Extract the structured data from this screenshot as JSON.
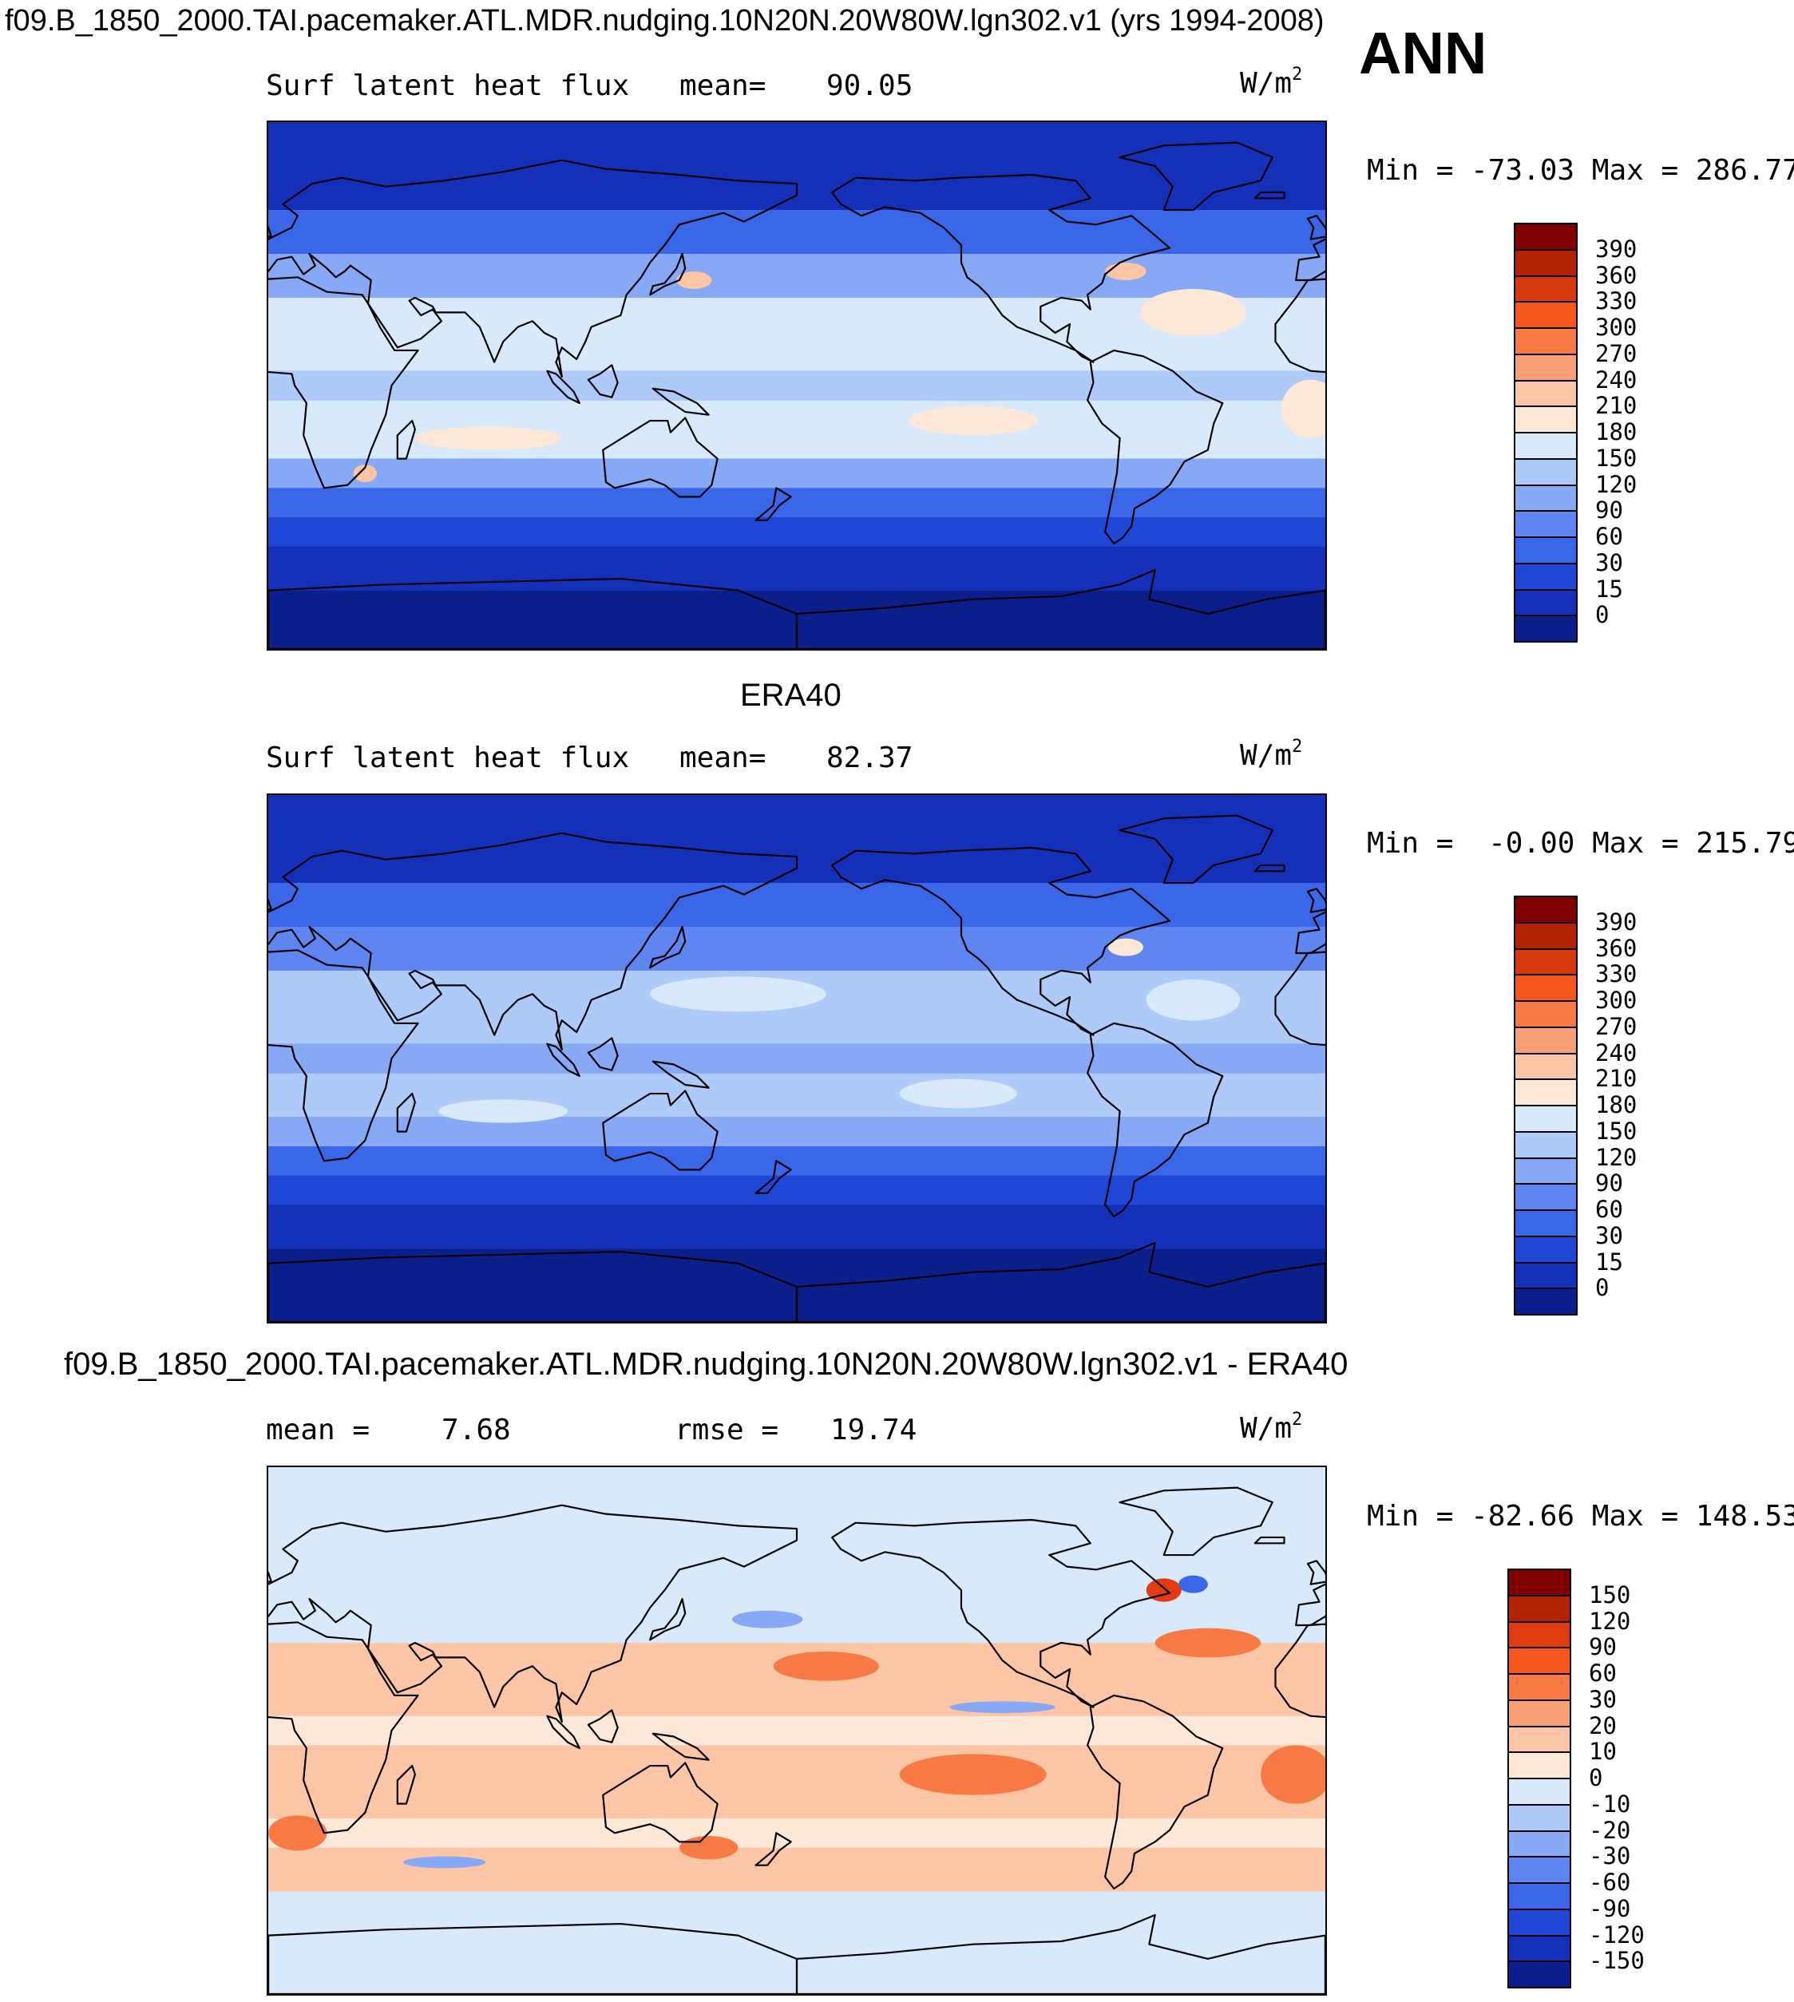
{
  "header": {
    "title": "f09.B_1850_2000.TAI.pacemaker.ATL.MDR.nudging.10N20N.20W80W.lgn302.v1 (yrs 1994-2008)",
    "season": "ANN"
  },
  "panels": [
    {
      "id": "model",
      "heading": "",
      "left_label": "Surf latent heat flux",
      "mean_label": "mean=",
      "mean_value": "90.05",
      "stat2_label": "",
      "stat2_value": "",
      "units": "W/m",
      "units_sup": "2",
      "min_label": "Min =",
      "min_value": "-73.03",
      "max_label": "Max =",
      "max_value": "286.77",
      "colorbar": {
        "levels": [
          "390",
          "360",
          "330",
          "300",
          "270",
          "240",
          "210",
          "180",
          "150",
          "120",
          "90",
          "60",
          "30",
          "15",
          "0"
        ],
        "colors": [
          "#7f0000",
          "#b22200",
          "#d83a10",
          "#f5561c",
          "#f77a45",
          "#f99f75",
          "#fcc5a6",
          "#fde8d8",
          "#d7e9fb",
          "#aecaf8",
          "#87a8f5",
          "#5f86f0",
          "#3a66e8",
          "#1f47d6",
          "#1430b8",
          "#0b1f8c"
        ]
      },
      "map": {
        "background": "#1f47d6",
        "zones": [
          {
            "color": "#0b1f8c",
            "lat_min": -90,
            "lat_max": -70
          },
          {
            "color": "#1430b8",
            "lat_min": -70,
            "lat_max": -55
          },
          {
            "color": "#1f47d6",
            "lat_min": -55,
            "lat_max": -45
          },
          {
            "color": "#3a66e8",
            "lat_min": -45,
            "lat_max": -35
          },
          {
            "color": "#87a8f5",
            "lat_min": -35,
            "lat_max": -25
          },
          {
            "color": "#d7e9fb",
            "lat_min": -25,
            "lat_max": -5
          },
          {
            "color": "#aecaf8",
            "lat_min": -5,
            "lat_max": 5
          },
          {
            "color": "#d7e9fb",
            "lat_min": 5,
            "lat_max": 30
          },
          {
            "color": "#87a8f5",
            "lat_min": 30,
            "lat_max": 45
          },
          {
            "color": "#3a66e8",
            "lat_min": 45,
            "lat_max": 60
          },
          {
            "color": "#1430b8",
            "lat_min": 60,
            "lat_max": 90
          }
        ],
        "blobs": [
          {
            "color": "#fde8d8",
            "lon": -120,
            "lat": -12,
            "rx": 22,
            "ry": 5
          },
          {
            "color": "#fde8d8",
            "lon": 75,
            "lat": -18,
            "rx": 25,
            "ry": 4
          },
          {
            "color": "#fde8d8",
            "lon": -45,
            "lat": 25,
            "rx": 18,
            "ry": 8
          },
          {
            "color": "#fcc5a6",
            "lon": 145,
            "lat": 36,
            "rx": 6,
            "ry": 3
          },
          {
            "color": "#fcc5a6",
            "lon": -68,
            "lat": 39,
            "rx": 7,
            "ry": 3
          },
          {
            "color": "#fde8d8",
            "lon": -5,
            "lat": -8,
            "rx": 10,
            "ry": 10
          },
          {
            "color": "#fcc5a6",
            "lon": 33,
            "lat": -30,
            "rx": 4,
            "ry": 3
          }
        ]
      }
    },
    {
      "id": "obs",
      "heading": "ERA40",
      "left_label": "Surf latent heat flux",
      "mean_label": "mean=",
      "mean_value": "82.37",
      "stat2_label": "",
      "stat2_value": "",
      "units": "W/m",
      "units_sup": "2",
      "min_label": "Min =",
      "min_value": "-0.00",
      "max_label": "Max =",
      "max_value": "215.79",
      "colorbar": {
        "levels": [
          "390",
          "360",
          "330",
          "300",
          "270",
          "240",
          "210",
          "180",
          "150",
          "120",
          "90",
          "60",
          "30",
          "15",
          "0"
        ],
        "colors": [
          "#7f0000",
          "#b22200",
          "#d83a10",
          "#f5561c",
          "#f77a45",
          "#f99f75",
          "#fcc5a6",
          "#fde8d8",
          "#d7e9fb",
          "#aecaf8",
          "#87a8f5",
          "#5f86f0",
          "#3a66e8",
          "#1f47d6",
          "#1430b8",
          "#0b1f8c"
        ]
      },
      "map": {
        "background": "#1f47d6",
        "zones": [
          {
            "color": "#0b1f8c",
            "lat_min": -90,
            "lat_max": -65
          },
          {
            "color": "#1430b8",
            "lat_min": -65,
            "lat_max": -50
          },
          {
            "color": "#1f47d6",
            "lat_min": -50,
            "lat_max": -40
          },
          {
            "color": "#3a66e8",
            "lat_min": -40,
            "lat_max": -30
          },
          {
            "color": "#87a8f5",
            "lat_min": -30,
            "lat_max": -20
          },
          {
            "color": "#aecaf8",
            "lat_min": -20,
            "lat_max": -5
          },
          {
            "color": "#87a8f5",
            "lat_min": -5,
            "lat_max": 5
          },
          {
            "color": "#aecaf8",
            "lat_min": 5,
            "lat_max": 30
          },
          {
            "color": "#5f86f0",
            "lat_min": 30,
            "lat_max": 45
          },
          {
            "color": "#3a66e8",
            "lat_min": 45,
            "lat_max": 60
          },
          {
            "color": "#1430b8",
            "lat_min": 60,
            "lat_max": 90
          }
        ],
        "blobs": [
          {
            "color": "#d7e9fb",
            "lon": -125,
            "lat": -12,
            "rx": 20,
            "ry": 5
          },
          {
            "color": "#d7e9fb",
            "lon": 80,
            "lat": -18,
            "rx": 22,
            "ry": 4
          },
          {
            "color": "#d7e9fb",
            "lon": 160,
            "lat": 22,
            "rx": 30,
            "ry": 6
          },
          {
            "color": "#fde8d8",
            "lon": -68,
            "lat": 38,
            "rx": 6,
            "ry": 3
          },
          {
            "color": "#d7e9fb",
            "lon": -45,
            "lat": 20,
            "rx": 16,
            "ry": 7
          }
        ]
      }
    },
    {
      "id": "diff",
      "heading": "f09.B_1850_2000.TAI.pacemaker.ATL.MDR.nudging.10N20N.20W80W.lgn302.v1 - ERA40",
      "left_label": "mean =",
      "mean_label": "",
      "mean_value": "7.68",
      "stat2_label": "rmse =",
      "stat2_value": "19.74",
      "units": "W/m",
      "units_sup": "2",
      "min_label": "Min =",
      "min_value": "-82.66",
      "max_label": "Max =",
      "max_value": "148.53",
      "colorbar": {
        "levels": [
          "150",
          "120",
          "90",
          "60",
          "30",
          "20",
          "10",
          "0",
          "-10",
          "-20",
          "-30",
          "-60",
          "-90",
          "-120",
          "-150"
        ],
        "colors": [
          "#7f0000",
          "#b22200",
          "#e03c10",
          "#f5561c",
          "#f77a45",
          "#f99f75",
          "#fcc5a6",
          "#fde8d8",
          "#d7e9fb",
          "#aecaf8",
          "#87a8f5",
          "#5f86f0",
          "#3a66e8",
          "#1f47d6",
          "#1430b8",
          "#0b1f8c"
        ]
      },
      "map": {
        "background": "#d7e9fb",
        "zones": [
          {
            "color": "#d7e9fb",
            "lat_min": -90,
            "lat_max": -55
          },
          {
            "color": "#fcc5a6",
            "lat_min": -55,
            "lat_max": -40
          },
          {
            "color": "#fde8d8",
            "lat_min": -40,
            "lat_max": -30
          },
          {
            "color": "#fcc5a6",
            "lat_min": -30,
            "lat_max": -5
          },
          {
            "color": "#fde8d8",
            "lat_min": -5,
            "lat_max": 5
          },
          {
            "color": "#fcc5a6",
            "lat_min": 5,
            "lat_max": 30
          },
          {
            "color": "#d7e9fb",
            "lat_min": 30,
            "lat_max": 90
          }
        ],
        "blobs": [
          {
            "color": "#f77a45",
            "lon": -120,
            "lat": -15,
            "rx": 25,
            "ry": 7
          },
          {
            "color": "#f77a45",
            "lon": -10,
            "lat": -15,
            "rx": 12,
            "ry": 10
          },
          {
            "color": "#f77a45",
            "lon": -170,
            "lat": 22,
            "rx": 18,
            "ry": 5
          },
          {
            "color": "#f77a45",
            "lon": -40,
            "lat": 30,
            "rx": 18,
            "ry": 5
          },
          {
            "color": "#e03c10",
            "lon": -55,
            "lat": 48,
            "rx": 6,
            "ry": 4
          },
          {
            "color": "#3a66e8",
            "lon": -45,
            "lat": 50,
            "rx": 5,
            "ry": 3
          },
          {
            "color": "#87a8f5",
            "lon": 170,
            "lat": 38,
            "rx": 12,
            "ry": 3
          },
          {
            "color": "#87a8f5",
            "lon": -110,
            "lat": 8,
            "rx": 18,
            "ry": 2
          },
          {
            "color": "#87a8f5",
            "lon": 60,
            "lat": -45,
            "rx": 14,
            "ry": 2
          },
          {
            "color": "#f77a45",
            "lon": 150,
            "lat": -40,
            "rx": 10,
            "ry": 4
          },
          {
            "color": "#f77a45",
            "lon": 10,
            "lat": -35,
            "rx": 10,
            "ry": 6
          }
        ]
      }
    }
  ]
}
